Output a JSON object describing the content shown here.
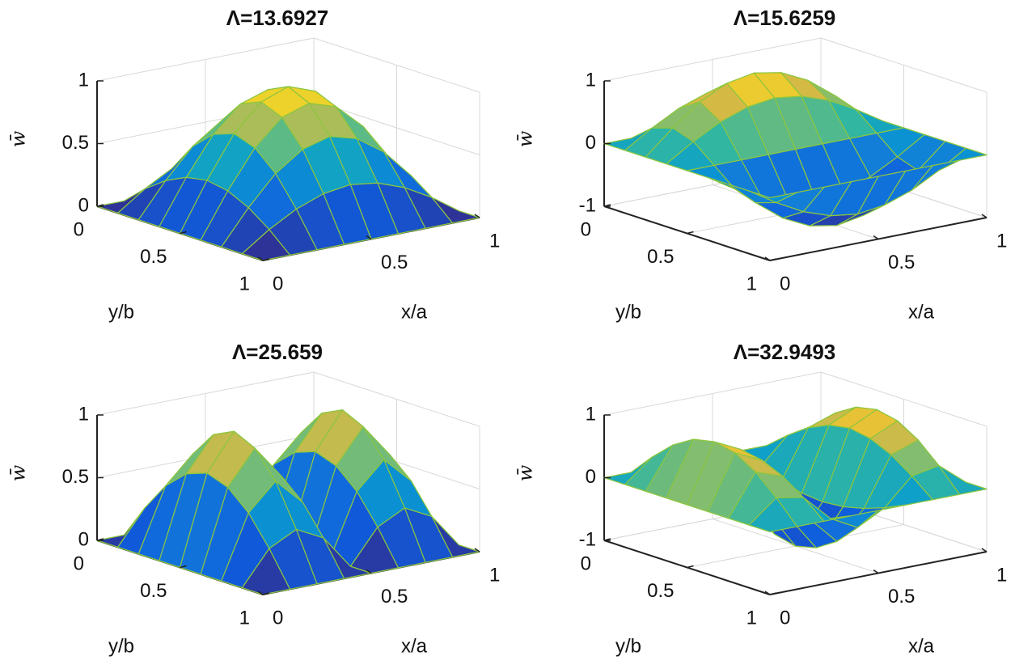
{
  "chart_data": [
    {
      "type": "surface",
      "title": "Λ=13.6927",
      "xlabel": "x/a",
      "ylabel": "y/b",
      "zlabel": "w̄",
      "colormap": "parula",
      "edgecolor": "#8cc63f",
      "grid": true,
      "x": [
        0,
        0.125,
        0.25,
        0.375,
        0.5,
        0.625,
        0.75,
        0.875,
        1
      ],
      "y": [
        0,
        0.125,
        0.25,
        0.375,
        0.5,
        0.625,
        0.75,
        0.875,
        1
      ],
      "z": [
        [
          0,
          0,
          0,
          0,
          0,
          0,
          0,
          0,
          0
        ],
        [
          0,
          0.15,
          0.27,
          0.35,
          0.38,
          0.35,
          0.27,
          0.15,
          0
        ],
        [
          0,
          0.27,
          0.5,
          0.65,
          0.71,
          0.65,
          0.5,
          0.27,
          0
        ],
        [
          0,
          0.35,
          0.65,
          0.85,
          0.92,
          0.85,
          0.65,
          0.35,
          0
        ],
        [
          0,
          0.38,
          0.71,
          0.92,
          1,
          0.92,
          0.71,
          0.38,
          0
        ],
        [
          0,
          0.35,
          0.65,
          0.85,
          0.92,
          0.85,
          0.65,
          0.35,
          0
        ],
        [
          0,
          0.27,
          0.5,
          0.65,
          0.71,
          0.65,
          0.5,
          0.27,
          0
        ],
        [
          0,
          0.15,
          0.27,
          0.35,
          0.38,
          0.35,
          0.27,
          0.15,
          0
        ],
        [
          0,
          0,
          0,
          0,
          0,
          0,
          0,
          0,
          0
        ]
      ],
      "xlim": [
        0,
        1
      ],
      "ylim": [
        0,
        1
      ],
      "zlim": [
        0,
        1
      ],
      "xticks": [
        0,
        0.5,
        1
      ],
      "yticks": [
        0,
        0.5,
        1
      ],
      "zticks": [
        0,
        0.5,
        1
      ]
    },
    {
      "type": "surface",
      "title": "Λ=15.6259",
      "xlabel": "x/a",
      "ylabel": "y/b",
      "zlabel": "w̄",
      "colormap": "parula",
      "edgecolor": "#8cc63f",
      "grid": true,
      "x": [
        0,
        0.125,
        0.25,
        0.375,
        0.5,
        0.625,
        0.75,
        0.875,
        1
      ],
      "y": [
        0,
        0.125,
        0.25,
        0.375,
        0.5,
        0.625,
        0.75,
        0.875,
        1
      ],
      "z": [
        [
          0,
          0,
          0,
          0,
          0,
          0,
          0,
          0,
          0
        ],
        [
          0,
          0.27,
          0.5,
          0.65,
          0.71,
          0.65,
          0.5,
          0.27,
          0
        ],
        [
          0,
          0.38,
          0.71,
          0.92,
          1,
          0.92,
          0.71,
          0.38,
          0
        ],
        [
          0,
          0.27,
          0.5,
          0.65,
          0.71,
          0.65,
          0.5,
          0.27,
          0
        ],
        [
          0,
          0,
          0,
          0,
          0,
          0,
          0,
          0,
          0
        ],
        [
          0,
          -0.27,
          -0.5,
          -0.65,
          -0.71,
          -0.65,
          -0.5,
          -0.27,
          0
        ],
        [
          0,
          -0.38,
          -0.71,
          -0.92,
          -1,
          -0.92,
          -0.71,
          -0.38,
          0
        ],
        [
          0,
          -0.27,
          -0.5,
          -0.65,
          -0.71,
          -0.65,
          -0.5,
          -0.27,
          0
        ],
        [
          0,
          0,
          0,
          0,
          0,
          0,
          0,
          0,
          0
        ]
      ],
      "xlim": [
        0,
        1
      ],
      "ylim": [
        0,
        1
      ],
      "zlim": [
        -1,
        1
      ],
      "xticks": [
        0,
        0.5,
        1
      ],
      "yticks": [
        0,
        0.5,
        1
      ],
      "zticks": [
        -1,
        0,
        1
      ]
    },
    {
      "type": "surface",
      "title": "Λ=25.659",
      "xlabel": "x/a",
      "ylabel": "y/b",
      "zlabel": "w̄",
      "colormap": "parula",
      "edgecolor": "#8cc63f",
      "grid": true,
      "x": [
        0,
        0.125,
        0.25,
        0.375,
        0.5,
        0.625,
        0.75,
        0.875,
        1
      ],
      "y": [
        0,
        0.125,
        0.25,
        0.375,
        0.5,
        0.625,
        0.75,
        0.875,
        1
      ],
      "z": [
        [
          0,
          0,
          0,
          0,
          0,
          0,
          0,
          0,
          0
        ],
        [
          0,
          0.27,
          0.38,
          0.27,
          0,
          0.27,
          0.38,
          0.27,
          0
        ],
        [
          0,
          0.5,
          0.71,
          0.5,
          0,
          0.5,
          0.71,
          0.5,
          0
        ],
        [
          0,
          0.65,
          0.92,
          0.65,
          0,
          0.65,
          0.92,
          0.65,
          0
        ],
        [
          0,
          0.71,
          1,
          0.71,
          0,
          0.71,
          1,
          0.71,
          0
        ],
        [
          0,
          0.65,
          0.92,
          0.65,
          0,
          0.65,
          0.92,
          0.65,
          0
        ],
        [
          0,
          0.5,
          0.71,
          0.5,
          0,
          0.5,
          0.71,
          0.5,
          0
        ],
        [
          0,
          0.27,
          0.38,
          0.27,
          0,
          0.27,
          0.38,
          0.27,
          0
        ],
        [
          0,
          0,
          0,
          0,
          0,
          0,
          0,
          0,
          0
        ]
      ],
      "xlim": [
        0,
        1
      ],
      "ylim": [
        0,
        1
      ],
      "zlim": [
        0,
        1
      ],
      "xticks": [
        0,
        0.5,
        1
      ],
      "yticks": [
        0,
        0.5,
        1
      ],
      "zticks": [
        0,
        0.5,
        1
      ]
    },
    {
      "type": "surface",
      "title": "Λ=32.9493",
      "xlabel": "x/a",
      "ylabel": "y/b",
      "zlabel": "w̄",
      "colormap": "parula",
      "edgecolor": "#8cc63f",
      "grid": true,
      "x": [
        0,
        0.125,
        0.25,
        0.375,
        0.5,
        0.625,
        0.75,
        0.875,
        1
      ],
      "y": [
        0,
        0.125,
        0.25,
        0.375,
        0.5,
        0.625,
        0.75,
        0.875,
        1
      ],
      "z": [
        [
          0,
          0,
          0,
          0,
          0,
          0,
          0,
          0,
          0
        ],
        [
          0,
          0.35,
          0.27,
          -0.15,
          -0.38,
          -0.15,
          0.27,
          0.35,
          0
        ],
        [
          0,
          0.65,
          0.5,
          -0.27,
          -0.71,
          -0.27,
          0.5,
          0.65,
          0
        ],
        [
          0,
          0.85,
          0.65,
          -0.35,
          -0.92,
          -0.35,
          0.65,
          0.85,
          0
        ],
        [
          0,
          0.92,
          0.71,
          -0.38,
          -1,
          -0.38,
          0.71,
          0.92,
          0
        ],
        [
          0,
          0.85,
          0.65,
          -0.35,
          -0.92,
          -0.35,
          0.65,
          0.85,
          0
        ],
        [
          0,
          0.65,
          0.5,
          -0.27,
          -0.71,
          -0.27,
          0.5,
          0.65,
          0
        ],
        [
          0,
          0.35,
          0.27,
          -0.15,
          -0.38,
          -0.15,
          0.27,
          0.35,
          0
        ],
        [
          0,
          0,
          0,
          0,
          0,
          0,
          0,
          0,
          0
        ]
      ],
      "xlim": [
        0,
        1
      ],
      "ylim": [
        0,
        1
      ],
      "zlim": [
        -1,
        1
      ],
      "xticks": [
        0,
        0.5,
        1
      ],
      "yticks": [
        0,
        0.5,
        1
      ],
      "zticks": [
        -1,
        0,
        1
      ]
    }
  ]
}
